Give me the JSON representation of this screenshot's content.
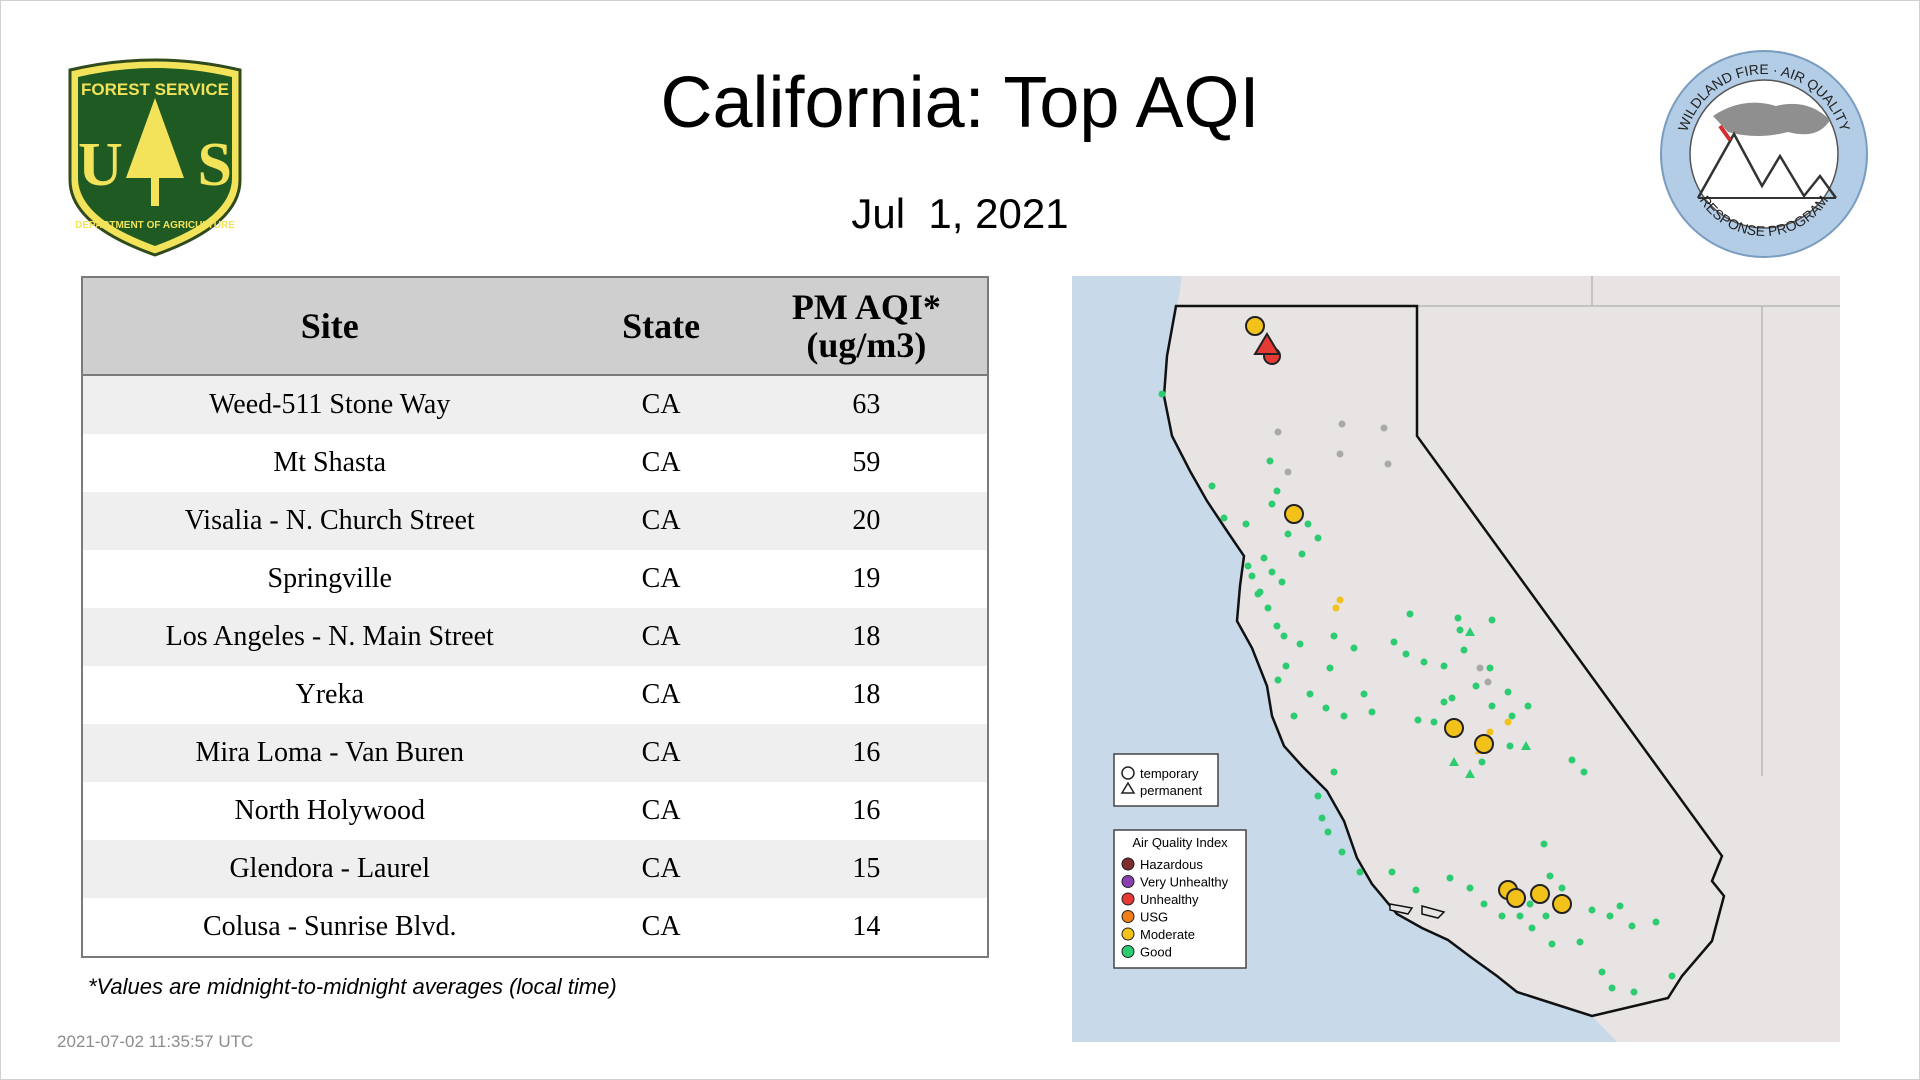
{
  "title": "California: Top AQI",
  "date": "Jul  1, 2021",
  "logos": {
    "forest_service": {
      "top_text": "FOREST SERVICE",
      "letters": "US",
      "bottom_text": "DEPARTMENT OF AGRICULTURE"
    },
    "wildland": {
      "top_text": "WILDLAND FIRE · AIR QUALITY",
      "bottom_text": "RESPONSE PROGRAM"
    }
  },
  "table": {
    "headers": {
      "site": "Site",
      "state": "State",
      "aqi_line1": "PM AQI*",
      "aqi_line2": "(ug/m3)"
    },
    "rows": [
      {
        "site": "Weed-511 Stone Way",
        "state": "CA",
        "aqi": "63"
      },
      {
        "site": "Mt Shasta",
        "state": "CA",
        "aqi": "59"
      },
      {
        "site": "Visalia - N. Church Street",
        "state": "CA",
        "aqi": "20"
      },
      {
        "site": "Springville",
        "state": "CA",
        "aqi": "19"
      },
      {
        "site": "Los Angeles - N. Main Street",
        "state": "CA",
        "aqi": "18"
      },
      {
        "site": "Yreka",
        "state": "CA",
        "aqi": "18"
      },
      {
        "site": "Mira Loma - Van Buren",
        "state": "CA",
        "aqi": "16"
      },
      {
        "site": "North Holywood",
        "state": "CA",
        "aqi": "16"
      },
      {
        "site": "Glendora - Laurel",
        "state": "CA",
        "aqi": "15"
      },
      {
        "site": "Colusa - Sunrise Blvd.",
        "state": "CA",
        "aqi": "14"
      }
    ]
  },
  "footnote": "*Values are midnight-to-midnight averages (local time)",
  "timestamp": "2021-07-02 11:35:57 UTC",
  "map": {
    "legend_shape": {
      "temporary": "temporary",
      "permanent": "permanent"
    },
    "legend_aqi": {
      "title": "Air Quality Index",
      "items": [
        {
          "label": "Hazardous",
          "color": "#7e2d2d"
        },
        {
          "label": "Very Unhealthy",
          "color": "#8a3fb1"
        },
        {
          "label": "Unhealthy",
          "color": "#e53935"
        },
        {
          "label": "USG",
          "color": "#ef7d1a"
        },
        {
          "label": "Moderate",
          "color": "#f2c21b"
        },
        {
          "label": "Good",
          "color": "#2ecc71"
        }
      ]
    },
    "colors": {
      "ocean": "#c8d9ea",
      "land": "#e8e4e4",
      "good": "#2ecc71",
      "moderate": "#f2c21b",
      "unhealthy": "#e53935",
      "inactive": "#a9a9a9"
    }
  }
}
